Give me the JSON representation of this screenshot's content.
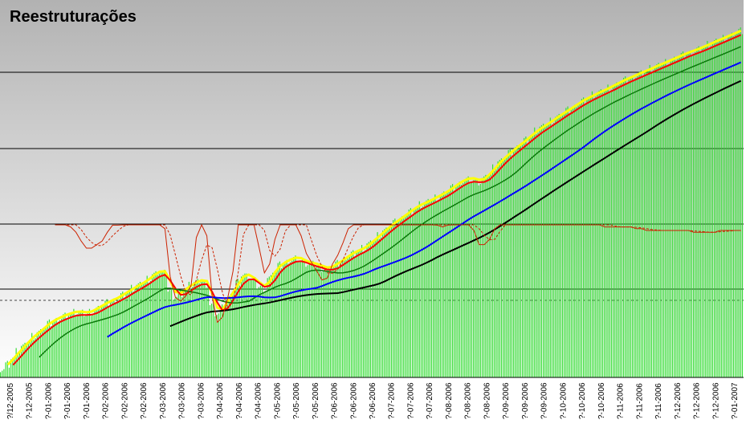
{
  "chart_data": {
    "type": "bar",
    "title": "Reestruturações",
    "xlabel": "",
    "ylabel": "",
    "grid": true,
    "x_tick_labels": [
      "?/12-2005",
      "?-12-2005",
      "?-01-2006",
      "?-01-2006",
      "?-01-2006",
      "?-02-2006",
      "?-02-2006",
      "?-02-2006",
      "?-03-2006",
      "?-03-2006",
      "?-03-2006",
      "?-04-2006",
      "?-04-2006",
      "?-04-2006",
      "?-05-2006",
      "?-05-2006",
      "?-05-2006",
      "?-06-2006",
      "?-06-2006",
      "?-06-2006",
      "?-07-2006",
      "?-07-2006",
      "?-07-2006",
      "?-08-2006",
      "?-08-2006",
      "?-08-2006",
      "?-09-2006",
      "?-09-2006",
      "?-09-2006",
      "?-10-2006",
      "?-10-2006",
      "?-10-2006",
      "?-11-2006",
      "?-11-2006",
      "?-11-2006",
      "?-12-2006",
      "?-12-2006",
      "?-12-2006",
      "?-01-2007"
    ],
    "colors": {
      "bars": "#33dd33",
      "background_top": "#b4b4b4",
      "background_bottom": "#ffffff",
      "price_line": "#ffff00",
      "ma_red": "#ff0000",
      "ma_dark_green": "#0a7a0a",
      "ma_blue": "#0000ff",
      "ma_black": "#000000",
      "oscillator": "#cc2200"
    },
    "series": [
      {
        "values": [
          12,
          18,
          26,
          34,
          41,
          49,
          55,
          60,
          67,
          72,
          76,
          79,
          82,
          84,
          86,
          85,
          84,
          87,
          91,
          95,
          99,
          102,
          105,
          110,
          114,
          118,
          122,
          126,
          131,
          137,
          140,
          138,
          115,
          108,
          112,
          118,
          122,
          126,
          128,
          124,
          96,
          85,
          92,
          105,
          116,
          127,
          136,
          133,
          128,
          121,
          118,
          132,
          143,
          149,
          153,
          156,
          158,
          155,
          151,
          150,
          148,
          145,
          143,
          147,
          151,
          156,
          161,
          165,
          168,
          171,
          177,
          183,
          189,
          195,
          201,
          206,
          211,
          216,
          221,
          226,
          229,
          232,
          236,
          239,
          243,
          247,
          252,
          257,
          261,
          263,
          262,
          259,
          264,
          271,
          279,
          287,
          293,
          299,
          305,
          310,
          316,
          322,
          327,
          332,
          336,
          341,
          346,
          350,
          355,
          359,
          364,
          368,
          371,
          375,
          378,
          381,
          385,
          388,
          392,
          395,
          398,
          401,
          404,
          407,
          410,
          413,
          416,
          419,
          422,
          425,
          428,
          431,
          433,
          436,
          439,
          442,
          445,
          448,
          451,
          454,
          457,
          460
        ]
      },
      {
        "values": [
          0,
          0,
          0,
          0,
          0,
          0,
          0,
          0,
          0,
          0,
          0,
          0,
          0,
          0,
          0,
          0,
          0,
          0,
          0,
          0,
          0,
          0,
          0,
          0,
          0,
          0,
          0,
          0,
          0,
          0,
          0,
          0,
          0,
          0,
          0,
          0,
          0,
          0,
          0,
          0,
          0,
          0,
          0,
          0,
          0,
          0,
          0,
          0,
          0,
          0,
          0,
          0,
          0,
          0,
          0,
          0,
          0,
          0,
          0,
          0,
          0,
          0,
          0,
          0,
          0,
          0,
          0,
          0,
          0,
          0,
          0,
          0,
          0,
          0,
          0,
          0,
          0,
          0,
          0,
          0,
          0,
          0,
          0,
          0,
          0,
          0,
          0,
          0,
          0,
          0,
          0,
          0,
          0,
          0,
          0,
          0,
          0,
          0,
          0,
          0,
          0,
          0,
          0,
          0,
          0,
          0,
          0,
          0,
          0,
          0,
          0,
          0,
          0,
          0,
          0,
          0,
          0,
          0,
          0,
          0,
          0,
          0,
          0,
          0,
          0,
          0,
          0,
          0,
          0,
          0,
          0,
          0,
          0,
          0,
          0,
          0,
          0,
          0,
          0,
          0,
          0,
          0
        ]
      }
    ]
  }
}
